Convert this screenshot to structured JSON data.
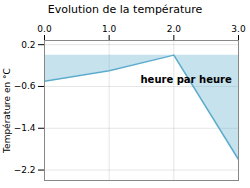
{
  "chart_data": {
    "type": "area",
    "title": "Evolution de la température",
    "ylabel": "Température en °C",
    "annotation": "heure par heure",
    "x": [
      0,
      1,
      2,
      3
    ],
    "values": [
      -0.5,
      -0.3,
      0.0,
      -2.0
    ],
    "color": "#5aabcc",
    "xlim": [
      0,
      3
    ],
    "ylim": [
      -2.4,
      0.28
    ],
    "xticks": [
      0,
      1,
      2,
      3
    ],
    "yticks": [
      0.2,
      -0.6,
      -1.4,
      -2.2
    ],
    "grid": true
  }
}
